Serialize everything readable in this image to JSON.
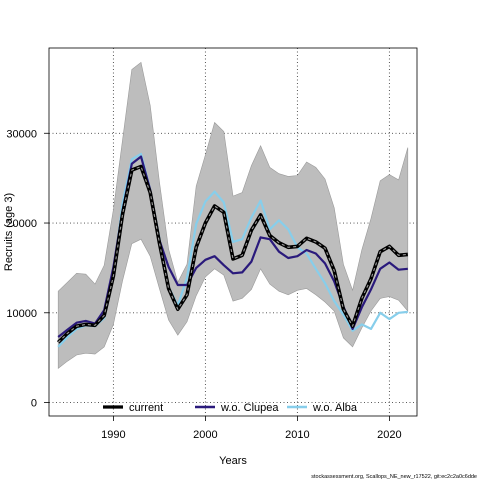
{
  "chart_data": {
    "type": "line",
    "xlabel": "Years",
    "ylabel": "Recruits (age 3)",
    "xlim": [
      1983,
      2023
    ],
    "ylim": [
      -1500,
      39500
    ],
    "xticks": [
      1990,
      2000,
      2010,
      2020
    ],
    "yticks": [
      0,
      10000,
      20000,
      30000
    ],
    "grid": true,
    "legend_position": "bottom",
    "x": [
      1984,
      1985,
      1986,
      1987,
      1988,
      1989,
      1990,
      1991,
      1992,
      1993,
      1994,
      1995,
      1996,
      1997,
      1998,
      1999,
      2000,
      2001,
      2002,
      2003,
      2004,
      2005,
      2006,
      2007,
      2008,
      2009,
      2010,
      2011,
      2012,
      2013,
      2014,
      2015,
      2016,
      2017,
      2018,
      2019,
      2020,
      2021,
      2022
    ],
    "band": {
      "lower": [
        3800,
        4600,
        5300,
        5500,
        5400,
        6200,
        8700,
        13600,
        17700,
        18200,
        16300,
        12700,
        9200,
        7500,
        9000,
        11900,
        14000,
        14900,
        14200,
        11300,
        11600,
        12600,
        14900,
        13200,
        12400,
        12000,
        12500,
        12700,
        12000,
        11200,
        10200,
        7200,
        6200,
        8300,
        10200,
        11600,
        11800,
        11400,
        10200
      ],
      "upper": [
        12400,
        13400,
        14400,
        14300,
        13200,
        15300,
        21500,
        29300,
        37100,
        37900,
        33100,
        24600,
        17100,
        13400,
        15400,
        24100,
        27600,
        31200,
        30200,
        23000,
        23400,
        26400,
        28600,
        26200,
        25500,
        25200,
        25300,
        26800,
        26200,
        24900,
        21700,
        15400,
        12500,
        17000,
        20500,
        24700,
        25400,
        24800,
        28400
      ]
    },
    "series": [
      {
        "name": "current",
        "color": "#000000",
        "style": "dashed-halo",
        "values": [
          6700,
          7700,
          8500,
          8700,
          8600,
          9700,
          14100,
          21000,
          25900,
          26300,
          23400,
          17800,
          12700,
          10400,
          12000,
          17300,
          20000,
          21900,
          21200,
          16000,
          16400,
          19200,
          20900,
          18600,
          17800,
          17300,
          17400,
          18300,
          17900,
          17200,
          14700,
          10400,
          8500,
          11600,
          13800,
          16800,
          17400,
          16400,
          16500
        ]
      },
      {
        "name": "w.o. Clupea",
        "color": "#2a1a7c",
        "style": "solid",
        "values": [
          7300,
          8100,
          8900,
          9100,
          8800,
          10300,
          15100,
          21400,
          26600,
          27400,
          23700,
          18100,
          15100,
          13100,
          13100,
          15000,
          15900,
          16300,
          15300,
          14400,
          14500,
          15700,
          18400,
          18200,
          16800,
          16100,
          16300,
          17000,
          16600,
          15500,
          13500,
          10700,
          8200,
          10600,
          12600,
          14900,
          15600,
          14800,
          14900
        ]
      },
      {
        "name": "w.o. Alba",
        "color": "#87ceeb",
        "style": "solid",
        "values": [
          6200,
          7300,
          8200,
          8600,
          8500,
          9400,
          14300,
          22200,
          27100,
          27700,
          23700,
          18300,
          12900,
          10800,
          13900,
          19900,
          22400,
          23500,
          22300,
          17900,
          18200,
          20600,
          22500,
          19300,
          20300,
          19300,
          17300,
          16600,
          14900,
          13300,
          11300,
          9800,
          8000,
          8700,
          8200,
          10000,
          9300,
          10000,
          10100
        ]
      }
    ],
    "footer": "stockassessment.org, Scallops_NE_new_r17522, git:ec2c2a0c6dde"
  }
}
